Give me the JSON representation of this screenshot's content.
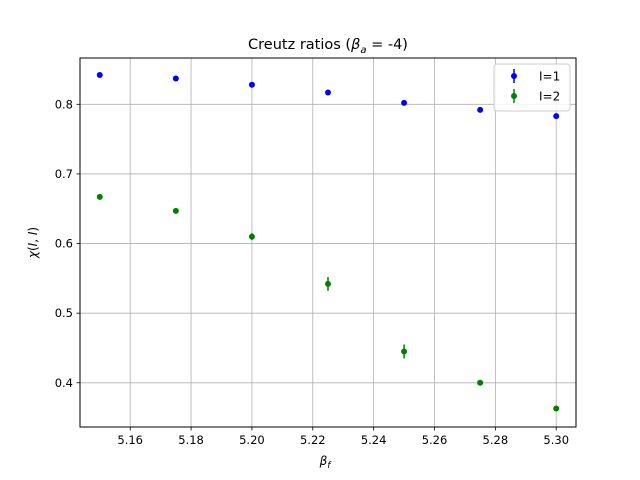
{
  "chart_data": {
    "type": "scatter",
    "title": {
      "main": "Creutz ratios (",
      "beta": "β",
      "sub": "a",
      "tail": " = -4)"
    },
    "xlabel": {
      "main": "β",
      "sub": "f"
    },
    "ylabel": {
      "chi": "χ",
      "open": "(",
      "arg1": "I",
      "comma": ", ",
      "arg2": "I",
      "close": ")"
    },
    "x_ticks": [
      "5.16",
      "5.18",
      "5.20",
      "5.22",
      "5.24",
      "5.26",
      "5.28",
      "5.30"
    ],
    "y_ticks": [
      "0.4",
      "0.5",
      "0.6",
      "0.7",
      "0.8"
    ],
    "xlim": [
      5.1435,
      5.3065
    ],
    "ylim": [
      0.3365,
      0.8665
    ],
    "grid": true,
    "legend_position": "top-right",
    "series": [
      {
        "name": "I=1",
        "color": "#0000ff",
        "points": [
          {
            "x": 5.15,
            "y": 0.842,
            "err": 0.002
          },
          {
            "x": 5.175,
            "y": 0.837,
            "err": 0.002
          },
          {
            "x": 5.2,
            "y": 0.828,
            "err": 0.002
          },
          {
            "x": 5.225,
            "y": 0.817,
            "err": 0.002
          },
          {
            "x": 5.25,
            "y": 0.802,
            "err": 0.002
          },
          {
            "x": 5.275,
            "y": 0.792,
            "err": 0.002
          },
          {
            "x": 5.3,
            "y": 0.783,
            "err": 0.002
          }
        ]
      },
      {
        "name": "I=2",
        "color": "#008000",
        "points": [
          {
            "x": 5.15,
            "y": 0.667,
            "err": 0.004
          },
          {
            "x": 5.175,
            "y": 0.647,
            "err": 0.003
          },
          {
            "x": 5.2,
            "y": 0.61,
            "err": 0.005
          },
          {
            "x": 5.225,
            "y": 0.542,
            "err": 0.01
          },
          {
            "x": 5.25,
            "y": 0.445,
            "err": 0.01
          },
          {
            "x": 5.275,
            "y": 0.4,
            "err": 0.004
          },
          {
            "x": 5.3,
            "y": 0.363,
            "err": 0.003
          }
        ]
      }
    ]
  }
}
